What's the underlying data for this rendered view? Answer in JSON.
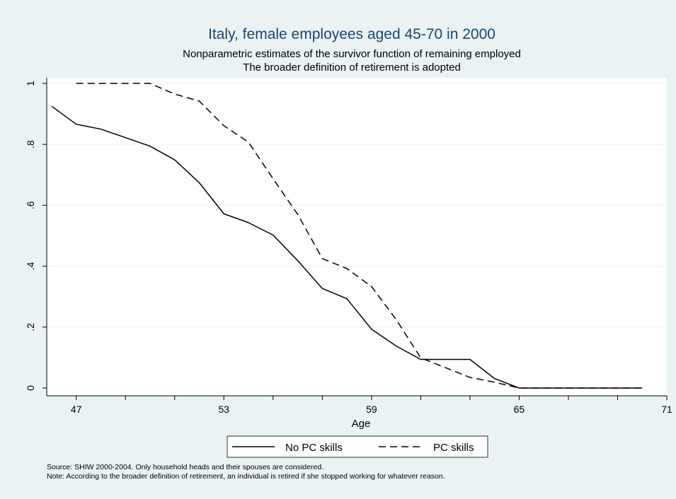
{
  "chart_data": {
    "type": "line",
    "title": "Italy, female employees aged 45-70 in 2000",
    "subtitle": [
      "Nonparametric estimates of the survivor function of remaining employed",
      "The broader definition of retirement is adopted"
    ],
    "xlabel": "Age",
    "ylabel": "",
    "xlim": [
      45.8,
      71
    ],
    "ylim": [
      0,
      1
    ],
    "x_ticks_labeled": [
      47,
      53,
      59,
      65,
      71
    ],
    "x_ticks_minor": [
      49,
      51,
      55,
      57,
      61,
      63,
      67,
      69
    ],
    "y_ticks": [
      0,
      0.2,
      0.4,
      0.6,
      0.8,
      1
    ],
    "y_tick_labels": [
      "0",
      ".2",
      ".4",
      ".6",
      ".8",
      "1"
    ],
    "grid": "horizontal",
    "legend_position": "bottom",
    "series": [
      {
        "name": "No PC skills",
        "style": "solid",
        "color": "#000000",
        "x": [
          46,
          47,
          48,
          49,
          50,
          51,
          52,
          53,
          54,
          55,
          56,
          57,
          58,
          59,
          60,
          61,
          62,
          63,
          64,
          65,
          66,
          67,
          68,
          69,
          70
        ],
        "y": [
          0.925,
          0.866,
          0.85,
          0.822,
          0.794,
          0.749,
          0.674,
          0.572,
          0.543,
          0.502,
          0.418,
          0.327,
          0.293,
          0.193,
          0.138,
          0.094,
          0.094,
          0.094,
          0.031,
          0,
          0,
          0,
          0,
          0,
          0
        ]
      },
      {
        "name": "PC skills",
        "style": "dashed",
        "color": "#000000",
        "x": [
          47,
          48,
          49,
          50,
          51,
          52,
          53,
          54,
          55,
          56,
          57,
          58,
          59,
          60,
          61,
          62,
          63,
          64,
          65,
          66,
          67,
          68,
          69,
          70
        ],
        "y": [
          1,
          1,
          1,
          1,
          0.965,
          0.942,
          0.861,
          0.807,
          0.687,
          0.57,
          0.425,
          0.392,
          0.333,
          0.225,
          0.099,
          0.067,
          0.035,
          0.019,
          0,
          0,
          0,
          0,
          0,
          0
        ]
      }
    ],
    "notes": [
      "Source: SHIW 2000-2004. Only household heads and their spouses are considered.",
      "Note: According to the broader definition of retirement, an individual is retired if she stopped working for whatever reason."
    ]
  },
  "colors": {
    "background": "#eaf2f3",
    "plot_background": "#ffffff",
    "title_color": "#1a476f",
    "grid_color": "#eaf2f3"
  }
}
